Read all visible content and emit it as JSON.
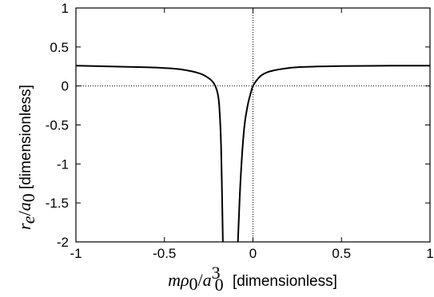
{
  "chart_data": {
    "type": "line",
    "title": "",
    "xlabel": {
      "math": "mρ0/a0^3",
      "unit": "[dimensionless]"
    },
    "ylabel": {
      "math": "re/a0",
      "unit": "[dimensionless]"
    },
    "xlim": [
      -1,
      1
    ],
    "ylim": [
      -2,
      1
    ],
    "x_ticks": [
      -1,
      -0.5,
      0,
      0.5,
      1
    ],
    "x_tick_labels": [
      "-1",
      "-0.5",
      "0",
      "0.5",
      "1"
    ],
    "y_ticks": [
      -2,
      -1.5,
      -1,
      -0.5,
      0,
      0.5,
      1
    ],
    "y_tick_labels": [
      "-2",
      "-1.5",
      "-1",
      "-0.5",
      "0",
      "0.5",
      "1"
    ],
    "grid": false,
    "reference_lines": {
      "x": 0,
      "y": 0,
      "style": "dotted"
    },
    "series": [
      {
        "color": "#000000",
        "segments": [
          {
            "x": [
              -1.0,
              -0.8,
              -0.6,
              -0.5,
              -0.4,
              -0.3,
              -0.25,
              -0.22,
              -0.2,
              -0.19,
              -0.18,
              -0.17
            ],
            "y": [
              0.26,
              0.25,
              0.24,
              0.23,
              0.21,
              0.16,
              0.1,
              0.03,
              -0.09,
              -0.27,
              -0.78,
              -2.0
            ]
          },
          {
            "x": [
              -0.085,
              -0.07,
              -0.05,
              -0.03,
              -0.01,
              0.0,
              0.02,
              0.05,
              0.1,
              0.2,
              0.3,
              0.5,
              0.8,
              1.0
            ],
            "y": [
              -2.0,
              -1.2,
              -0.55,
              -0.25,
              -0.07,
              0.0,
              0.07,
              0.14,
              0.19,
              0.23,
              0.245,
              0.255,
              0.26,
              0.26
            ]
          }
        ]
      }
    ]
  }
}
